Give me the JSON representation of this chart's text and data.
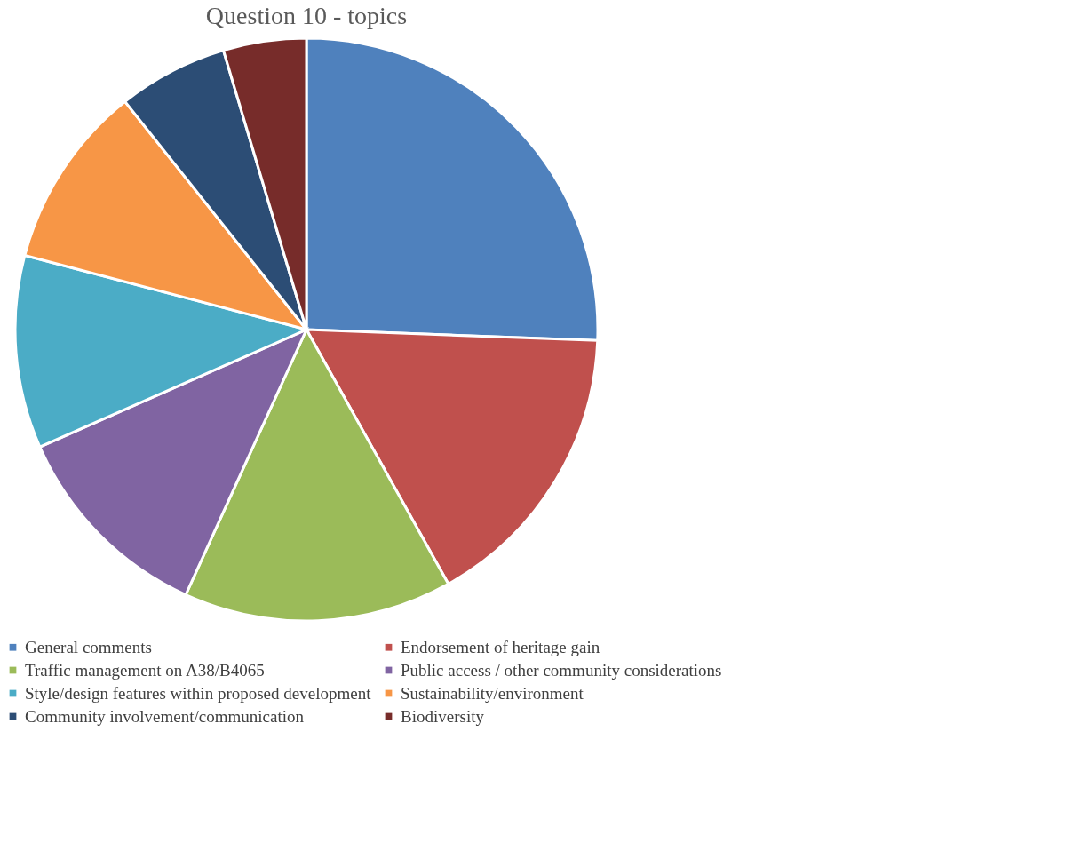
{
  "chart_data": {
    "type": "pie",
    "title": "Question 10 - topics",
    "categories": [
      "General comments",
      "Endorsement of heritage gain",
      "Traffic management on A38/B4065",
      "Public access / other community considerations",
      "Style/design features within proposed development",
      "Sustainability/environment",
      "Community involvement/communication",
      "Biodiversity"
    ],
    "values": [
      25.6,
      16.3,
      14.9,
      11.6,
      10.7,
      10.2,
      6.1,
      4.6
    ],
    "colors": [
      "#4f81bd",
      "#c0504d",
      "#9bbb59",
      "#8064a2",
      "#4bacc6",
      "#f79646",
      "#2c4d75",
      "#772c2a"
    ],
    "legend": "bottom"
  }
}
